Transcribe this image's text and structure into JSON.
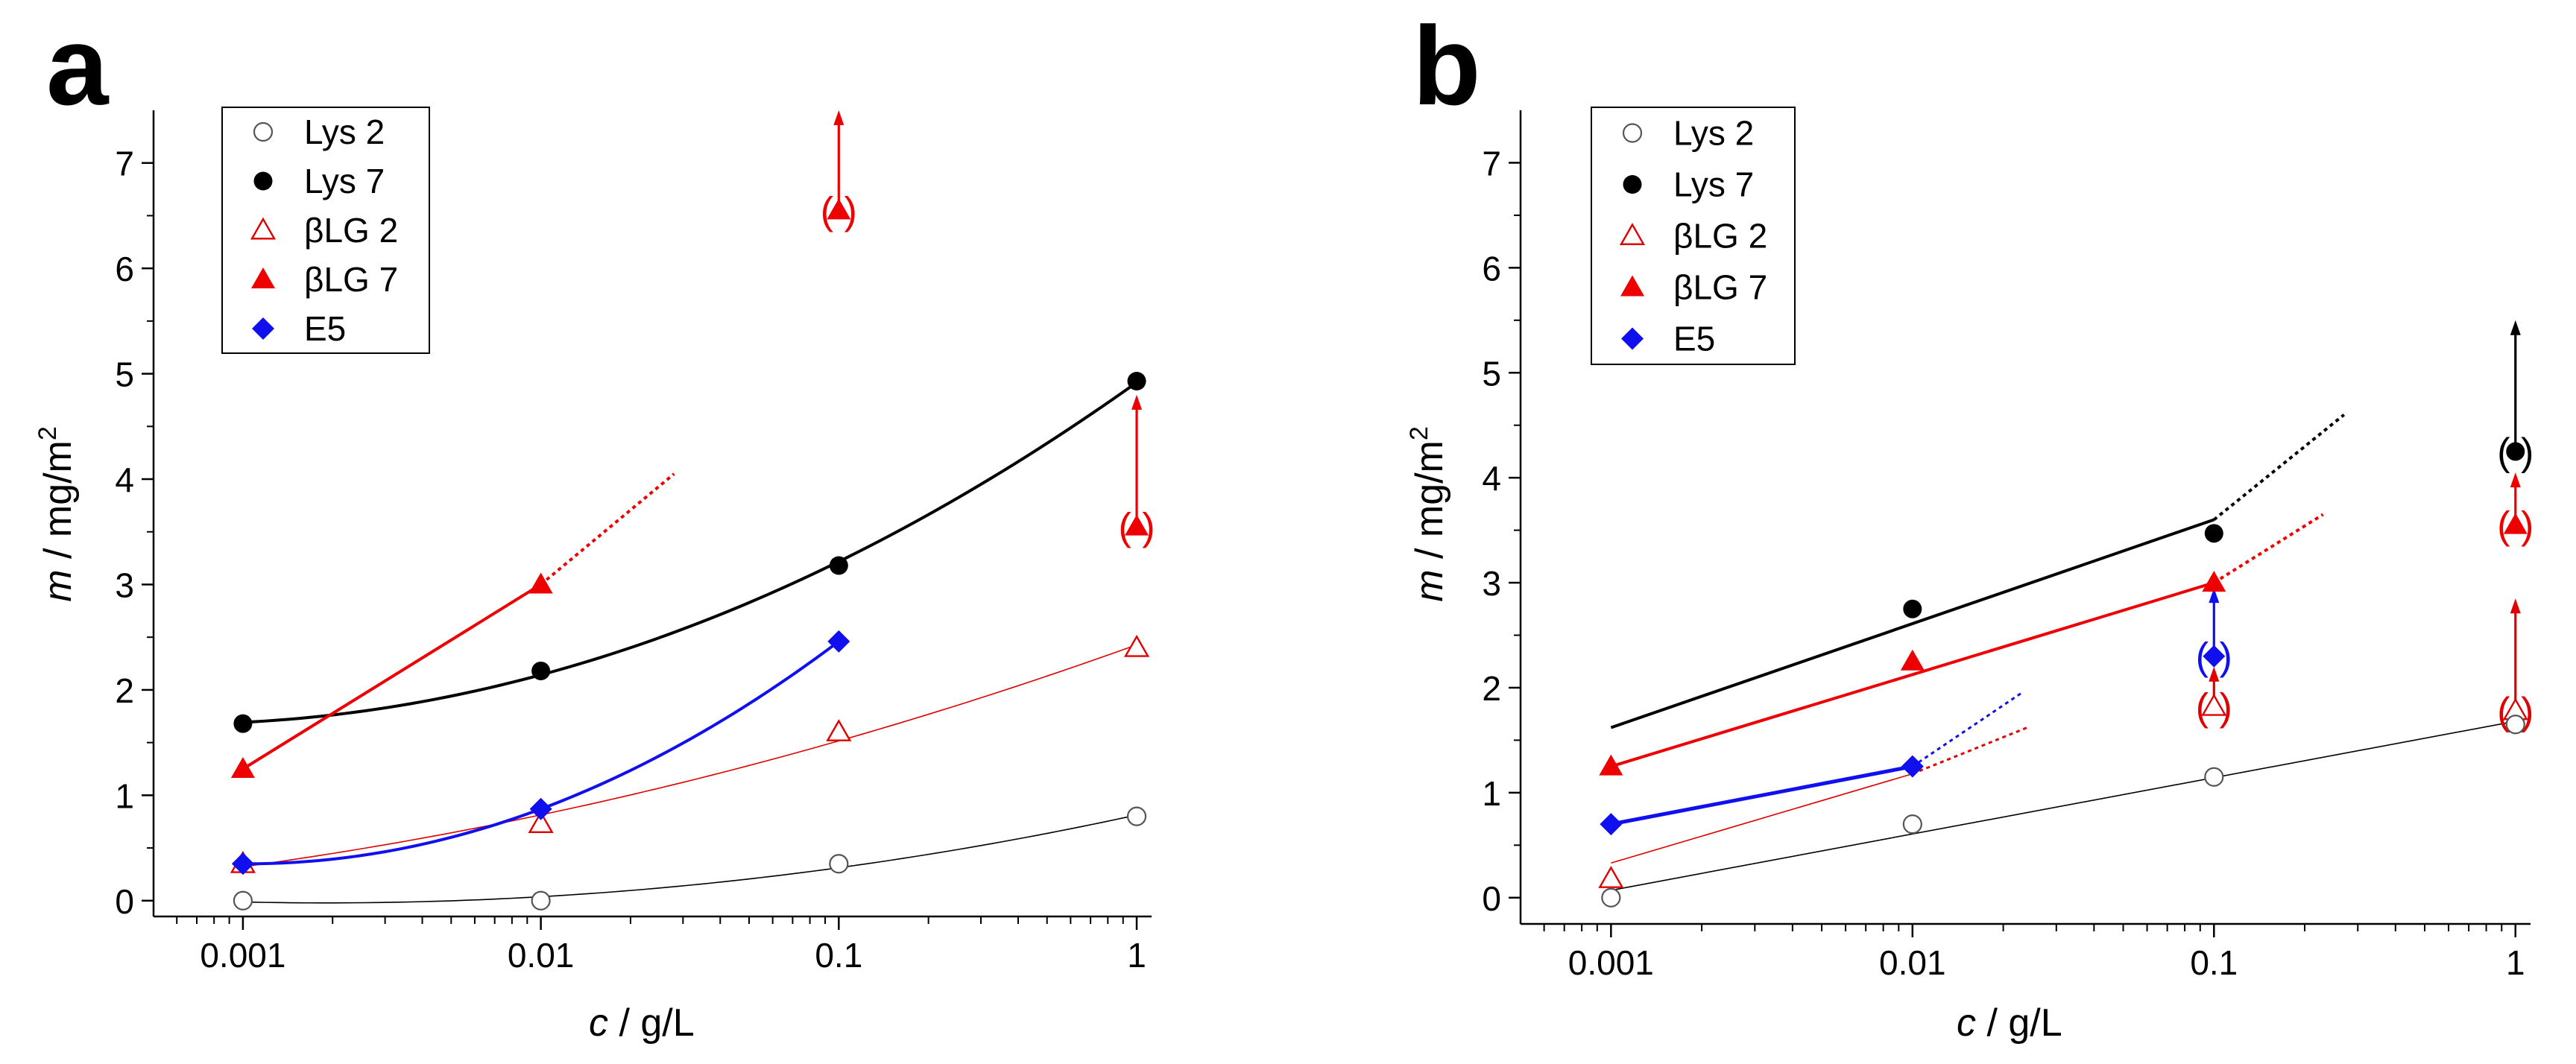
{
  "figure": {
    "panels": [
      {
        "id": "a",
        "label": "a",
        "xlabel_var": "c",
        "xlabel_unit": " / g/L",
        "ylabel_var": "m",
        "ylabel_unit": "  / mg/m",
        "ylabel_sup": "2",
        "xlim_log": [
          -3.3,
          0.05
        ],
        "ylim": [
          -0.15,
          7.5
        ],
        "xticks": [
          {
            "value": 0.001,
            "label": "0.001"
          },
          {
            "value": 0.01,
            "label": "0.01"
          },
          {
            "value": 0.1,
            "label": "0.1"
          },
          {
            "value": 1,
            "label": "1"
          }
        ],
        "yticks": [
          {
            "value": 0,
            "label": "0"
          },
          {
            "value": 1,
            "label": "1"
          },
          {
            "value": 2,
            "label": "2"
          },
          {
            "value": 3,
            "label": "3"
          },
          {
            "value": 4,
            "label": "4"
          },
          {
            "value": 5,
            "label": "5"
          },
          {
            "value": 6,
            "label": "6"
          },
          {
            "value": 7,
            "label": "7"
          }
        ]
      },
      {
        "id": "b",
        "label": "b",
        "xlabel_var": "c",
        "xlabel_unit": " / g/L",
        "ylabel_var": "m",
        "ylabel_unit": "  / mg/m",
        "ylabel_sup": "2",
        "xlim_log": [
          -3.3,
          0.05
        ],
        "ylim": [
          -0.25,
          7.5
        ],
        "xticks": [
          {
            "value": 0.001,
            "label": "0.001"
          },
          {
            "value": 0.01,
            "label": "0.01"
          },
          {
            "value": 0.1,
            "label": "0.1"
          },
          {
            "value": 1,
            "label": "1"
          }
        ],
        "yticks": [
          {
            "value": 0,
            "label": "0"
          },
          {
            "value": 1,
            "label": "1"
          },
          {
            "value": 2,
            "label": "2"
          },
          {
            "value": 3,
            "label": "3"
          },
          {
            "value": 4,
            "label": "4"
          },
          {
            "value": 5,
            "label": "5"
          },
          {
            "value": 6,
            "label": "6"
          },
          {
            "value": 7,
            "label": "7"
          }
        ]
      }
    ],
    "legend": {
      "entries": [
        {
          "label": "Lys 2",
          "marker": "circle-open",
          "color": "#555555"
        },
        {
          "label": "Lys 7",
          "marker": "circle-filled",
          "color": "#000000"
        },
        {
          "label": "βLG 2",
          "marker": "triangle-open",
          "color": "#e00000"
        },
        {
          "label": "βLG 7",
          "marker": "triangle-filled",
          "color": "#ee0000"
        },
        {
          "label": "E5",
          "marker": "diamond-filled",
          "color": "#1010ee"
        }
      ]
    },
    "annotation_text": "(   )"
  },
  "chart_data": [
    {
      "panel": "a",
      "type": "scatter",
      "title": "",
      "xlabel": "c / g/L",
      "ylabel": "m / mg/m2",
      "xscale": "log",
      "xlim": [
        0.0005,
        1.12
      ],
      "ylim": [
        -0.15,
        7.5
      ],
      "legend_position": "top-left",
      "series": [
        {
          "name": "Lys 2",
          "marker": "circle-open",
          "color": "#555555",
          "x": [
            0.001,
            0.01,
            0.1,
            1
          ],
          "y": [
            0.0,
            0.0,
            0.35,
            0.8
          ]
        },
        {
          "name": "Lys 7",
          "marker": "circle-filled",
          "color": "#000000",
          "x": [
            0.001,
            0.01,
            0.1,
            1
          ],
          "y": [
            1.68,
            2.18,
            3.18,
            4.93
          ]
        },
        {
          "name": "βLG 2",
          "marker": "triangle-open",
          "color": "#e00000",
          "x": [
            0.001,
            0.01,
            0.1,
            1
          ],
          "y": [
            0.35,
            0.73,
            1.6,
            2.4
          ]
        },
        {
          "name": "βLG 7",
          "marker": "triangle-filled",
          "color": "#ee0000",
          "x": [
            0.001,
            0.01
          ],
          "y": [
            1.25,
            3.0
          ]
        },
        {
          "name": "E5",
          "marker": "diamond-filled",
          "color": "#1010ee",
          "x": [
            0.001,
            0.01,
            0.1
          ],
          "y": [
            0.35,
            0.87,
            2.46
          ]
        }
      ],
      "fits": [
        {
          "series": "Lys 2",
          "kind": "quadratic-log",
          "x": [
            0.001,
            0.01,
            0.1,
            1
          ],
          "y": [
            0.0,
            0.0,
            0.35,
            0.8
          ],
          "x_range": [
            0.001,
            1
          ],
          "color": "#000000",
          "width": 1.6,
          "dashed": false
        },
        {
          "series": "Lys 7",
          "kind": "quadratic-log",
          "x": [
            0.001,
            0.01,
            0.1,
            1
          ],
          "y": [
            1.68,
            2.18,
            3.18,
            4.93
          ],
          "x_range": [
            0.001,
            1
          ],
          "color": "#000000",
          "width": 4,
          "dashed": false
        },
        {
          "series": "βLG 2",
          "kind": "quadratic-log",
          "x": [
            0.001,
            0.01,
            0.1,
            1
          ],
          "y": [
            0.35,
            0.73,
            1.6,
            2.4
          ],
          "x_range": [
            0.001,
            1
          ],
          "color": "#e00000",
          "width": 1.6,
          "dashed": false
        },
        {
          "series": "E5",
          "kind": "quadratic-log",
          "x": [
            0.001,
            0.01,
            0.1
          ],
          "y": [
            0.35,
            0.87,
            2.46
          ],
          "x_range": [
            0.001,
            0.1
          ],
          "color": "#1010ee",
          "width": 4,
          "dashed": false
        },
        {
          "series": "βLG 7",
          "kind": "segment",
          "x": [
            0.001,
            0.01
          ],
          "y": [
            1.25,
            3.0
          ],
          "color": "#ee0000",
          "width": 4,
          "dashed": false
        },
        {
          "series": "βLG 7",
          "kind": "segment",
          "x": [
            0.01,
            0.028
          ],
          "y": [
            3.0,
            4.05
          ],
          "color": "#ee0000",
          "width": 4,
          "dashed": true
        }
      ],
      "bracketed_points": [
        {
          "series": "βLG 7",
          "marker": "triangle-filled",
          "color": "#ee0000",
          "x": 0.1,
          "y": 6.55,
          "arrow_to": 7.5
        },
        {
          "series": "βLG 7",
          "marker": "triangle-filled",
          "color": "#ee0000",
          "x": 1,
          "y": 3.55,
          "arrow_to": 4.8
        }
      ]
    },
    {
      "panel": "b",
      "type": "scatter",
      "title": "",
      "xlabel": "c / g/L",
      "ylabel": "m / mg/m2",
      "xscale": "log",
      "xlim": [
        0.0005,
        1.12
      ],
      "ylim": [
        -0.25,
        7.5
      ],
      "legend_position": "top-left",
      "series": [
        {
          "name": "Lys 2",
          "marker": "circle-open",
          "color": "#555555",
          "x": [
            0.001,
            0.01,
            0.1,
            1
          ],
          "y": [
            0.0,
            0.7,
            1.15,
            1.65
          ]
        },
        {
          "name": "Lys 7",
          "marker": "circle-filled",
          "color": "#000000",
          "x": [
            0.01,
            0.1
          ],
          "y": [
            2.75,
            3.47
          ]
        },
        {
          "name": "βLG 2",
          "marker": "triangle-open",
          "color": "#e00000",
          "x": [
            0.001
          ],
          "y": [
            0.18
          ]
        },
        {
          "name": "βLG 7",
          "marker": "triangle-filled",
          "color": "#ee0000",
          "x": [
            0.001,
            0.01,
            0.1
          ],
          "y": [
            1.25,
            2.25,
            3.0
          ]
        },
        {
          "name": "E5",
          "marker": "diamond-filled",
          "color": "#1010ee",
          "x": [
            0.001,
            0.01
          ],
          "y": [
            0.7,
            1.25
          ]
        }
      ],
      "fits": [
        {
          "series": "Lys 2",
          "kind": "segment",
          "x": [
            0.001,
            1
          ],
          "y": [
            0.07,
            1.68
          ],
          "color": "#000000",
          "width": 1.6,
          "dashed": false
        },
        {
          "series": "βLG 2",
          "kind": "segment",
          "x": [
            0.001,
            0.01
          ],
          "y": [
            0.33,
            1.18
          ],
          "color": "#e00000",
          "width": 1.6,
          "dashed": false
        },
        {
          "series": "βLG 2",
          "kind": "segment",
          "x": [
            0.01,
            0.024
          ],
          "y": [
            1.18,
            1.62
          ],
          "color": "#e00000",
          "width": 3,
          "dashed": true
        },
        {
          "series": "Lys 7",
          "kind": "segment",
          "x": [
            0.001,
            0.1
          ],
          "y": [
            1.62,
            3.6
          ],
          "color": "#000000",
          "width": 4,
          "dashed": false
        },
        {
          "series": "Lys 7",
          "kind": "segment",
          "x": [
            0.1,
            0.27
          ],
          "y": [
            3.6,
            4.6
          ],
          "color": "#000000",
          "width": 4,
          "dashed": true
        },
        {
          "series": "βLG 7",
          "kind": "segment",
          "x": [
            0.001,
            0.1
          ],
          "y": [
            1.25,
            3.0
          ],
          "color": "#ee0000",
          "width": 4,
          "dashed": false
        },
        {
          "series": "βLG 7",
          "kind": "segment",
          "x": [
            0.1,
            0.23
          ],
          "y": [
            3.0,
            3.65
          ],
          "color": "#ee0000",
          "width": 4,
          "dashed": true
        },
        {
          "series": "E5",
          "kind": "segment",
          "x": [
            0.001,
            0.01
          ],
          "y": [
            0.7,
            1.25
          ],
          "color": "#1010ee",
          "width": 5,
          "dashed": false
        },
        {
          "series": "E5",
          "kind": "segment",
          "x": [
            0.01,
            0.023
          ],
          "y": [
            1.25,
            1.95
          ],
          "color": "#1010ee",
          "width": 3,
          "dashed": true
        }
      ],
      "bracketed_points": [
        {
          "series": "E5",
          "marker": "diamond-filled",
          "color": "#1010ee",
          "x": 0.1,
          "y": 2.3,
          "arrow_to": 2.95
        },
        {
          "series": "βLG 2",
          "marker": "triangle-open",
          "color": "#e00000",
          "x": 0.1,
          "y": 1.82,
          "arrow_to": 2.2
        },
        {
          "series": "Lys 7",
          "marker": "circle-filled",
          "color": "#000000",
          "x": 1,
          "y": 4.25,
          "arrow_to": 5.5
        },
        {
          "series": "βLG 7",
          "marker": "triangle-filled",
          "color": "#ee0000",
          "x": 1,
          "y": 3.55,
          "arrow_to": 4.05
        },
        {
          "series": "βLG 2",
          "marker": "triangle-open",
          "color": "#e00000",
          "x": 1,
          "y": 1.78,
          "arrow_to": 2.85
        }
      ]
    }
  ]
}
